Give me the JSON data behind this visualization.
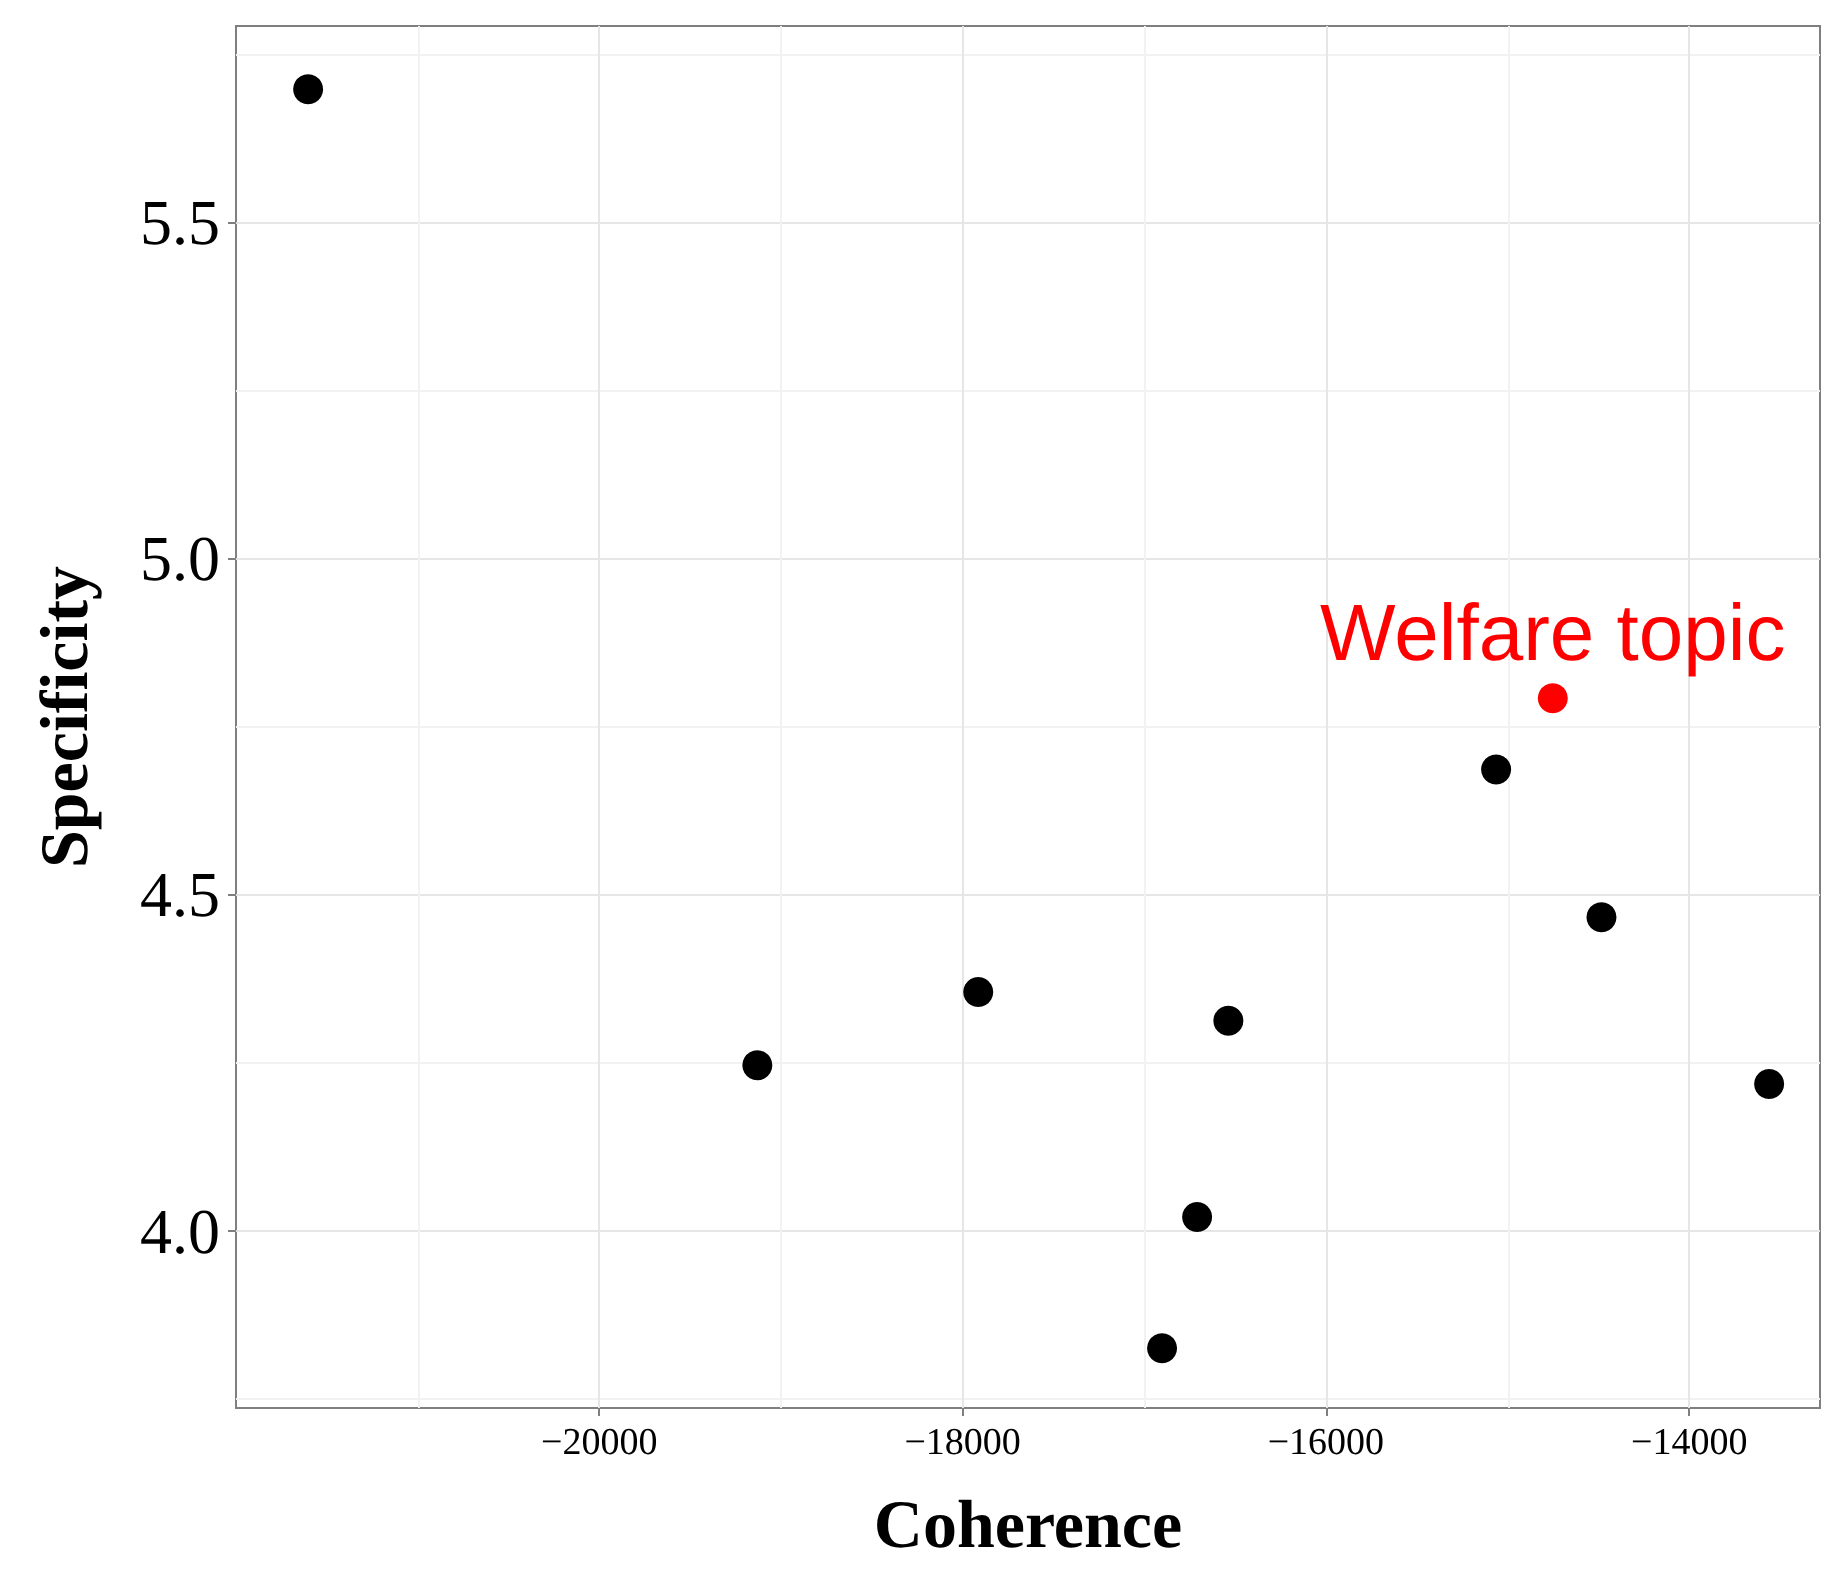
{
  "chart_data": {
    "type": "scatter",
    "xlabel": "Coherence",
    "ylabel": "Specificity",
    "xlim": [
      -22000,
      -13280
    ],
    "ylim": [
      3.736,
      5.792
    ],
    "xticks": [
      {
        "value": -20000,
        "label": "−20000"
      },
      {
        "value": -18000,
        "label": "−18000"
      },
      {
        "value": -16000,
        "label": "−16000"
      },
      {
        "value": -14000,
        "label": "−14000"
      }
    ],
    "yticks": [
      {
        "value": 4,
        "label": "4.0"
      },
      {
        "value": 4.5,
        "label": "4.5"
      },
      {
        "value": 5,
        "label": "5.0"
      },
      {
        "value": 5.5,
        "label": "5.5"
      }
    ],
    "grid": true,
    "marker": "circle",
    "series": [
      {
        "color": "#000000",
        "x": [
          -21603,
          -19130,
          -17914,
          -16537,
          -16709,
          -16902,
          -15063,
          -14483,
          -13560
        ],
        "values": [
          5.698,
          4.246,
          4.355,
          4.312,
          4.02,
          3.825,
          4.686,
          4.466,
          4.218
        ]
      },
      {
        "color": "#ff0000",
        "x": [
          -14751
        ],
        "values": [
          4.792
        ]
      }
    ],
    "annotations": [
      {
        "text": "Welfare topic",
        "x": -14751,
        "y": 4.792
      }
    ]
  }
}
